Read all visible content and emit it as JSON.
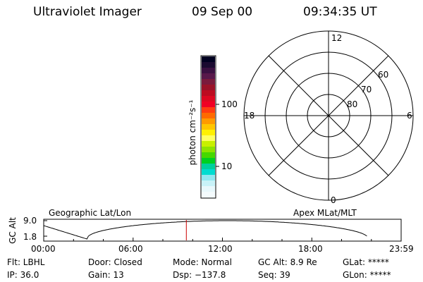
{
  "header": {
    "instrument": "Ultraviolet Imager",
    "date": "09 Sep 00",
    "time": "09:34:35 UT"
  },
  "colorbar": {
    "unit_label": "photon cm⁻²s⁻¹",
    "ticks": [
      "100",
      "10"
    ],
    "colors": [
      "#000020",
      "#1a0a30",
      "#3a1040",
      "#58184a",
      "#7a1a3c",
      "#9a1228",
      "#bc0c20",
      "#dc0820",
      "#f00024",
      "#ff3c10",
      "#ff6a00",
      "#ff9a00",
      "#ffc600",
      "#fff000",
      "#ffff60",
      "#c8f000",
      "#8ee400",
      "#46d800",
      "#00d020",
      "#00d09c",
      "#00dcd0",
      "#90e8f0",
      "#c8f2f8",
      "#e8f8fc",
      "#f4fbfd"
    ]
  },
  "polar_plot": {
    "mlt_labels": {
      "top": "12",
      "right": "6",
      "bottom": "0",
      "left": "18"
    },
    "lat_labels": [
      "80",
      "70",
      "60"
    ]
  },
  "timeline": {
    "y_axis_label": "GC Alt",
    "y_max": "9.0",
    "y_min": "1.8",
    "left_title": "Geographic Lat/Lon",
    "right_title": "Apex MLat/MLT",
    "time_ticks": [
      "00:00",
      "06:00",
      "12:00",
      "18:00",
      "23:59"
    ],
    "current_time_hours": 9.576,
    "marker_color": "#cc0000"
  },
  "info": {
    "row1": {
      "flt": "Flt: LBHL",
      "door": "Door: Closed",
      "mode": "Mode: Normal",
      "gc_alt": "GC Alt: 8.9 Re",
      "glat": "GLat: *****"
    },
    "row2": {
      "ip": "IP: 36.0",
      "gain": "Gain: 13",
      "dsp": "Dsp: −137.8",
      "seq": "Seq: 39",
      "glon": "GLon: *****"
    }
  }
}
